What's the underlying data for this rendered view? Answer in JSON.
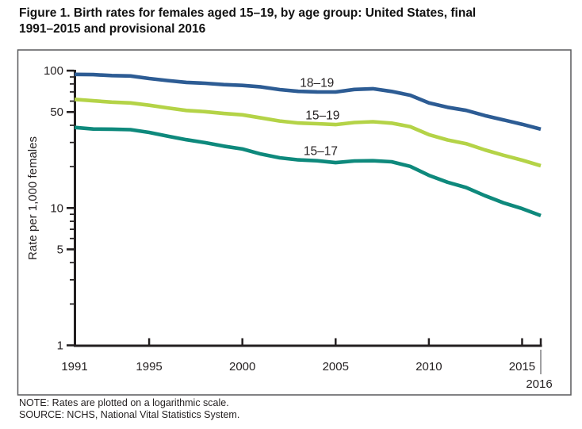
{
  "figure": {
    "title_lines": [
      "Figure 1. Birth rates for females aged 15–19, by age group: United States, final",
      "1991–2015 and provisional 2016"
    ],
    "notes": [
      "NOTE: Rates are plotted on a logarithmic scale.",
      "SOURCE: NCHS, National Vital Statistics System."
    ]
  },
  "chart_data": {
    "type": "line",
    "title": "Birth rates for females aged 15–19, by age group: United States, final 1991–2015 and provisional 2016",
    "xlabel": "",
    "ylabel": "Rate per 1,000 females",
    "y_scale": "log",
    "ylim": [
      1,
      100
    ],
    "xlim": [
      1991,
      2016
    ],
    "grid": false,
    "legend_position": "inline-labels",
    "colors": {
      "series_18_19": "#2d5c94",
      "series_15_19": "#b4d347",
      "series_15_17": "#0e897c",
      "axis": "#231f20",
      "box_border": "#58595b",
      "divider": "#77787b"
    },
    "x": [
      1991,
      1992,
      1993,
      1994,
      1995,
      1996,
      1997,
      1998,
      1999,
      2000,
      2001,
      2002,
      2003,
      2004,
      2005,
      2006,
      2007,
      2008,
      2009,
      2010,
      2011,
      2012,
      2013,
      2014,
      2015,
      2016
    ],
    "series": [
      {
        "name": "18–19",
        "color_key": "series_18_19",
        "values": [
          94.0,
          93.6,
          92.1,
          91.5,
          87.7,
          84.7,
          82.1,
          80.9,
          79.1,
          78.1,
          76.1,
          72.8,
          70.7,
          70.0,
          69.9,
          73.0,
          73.9,
          70.6,
          66.2,
          58.2,
          54.1,
          51.4,
          47.1,
          43.8,
          40.7,
          37.5
        ]
      },
      {
        "name": "15–19",
        "color_key": "series_15_19",
        "values": [
          61.8,
          60.3,
          59.0,
          58.2,
          56.0,
          53.5,
          51.3,
          50.3,
          48.8,
          47.7,
          45.3,
          43.0,
          41.6,
          41.1,
          40.5,
          41.9,
          42.5,
          41.5,
          39.1,
          34.2,
          31.3,
          29.4,
          26.5,
          24.2,
          22.3,
          20.3
        ]
      },
      {
        "name": "15–17",
        "color_key": "series_15_17",
        "values": [
          38.6,
          37.6,
          37.5,
          37.2,
          35.5,
          33.3,
          31.4,
          29.9,
          28.2,
          26.9,
          24.7,
          23.2,
          22.4,
          22.1,
          21.4,
          22.0,
          22.1,
          21.7,
          20.1,
          17.3,
          15.4,
          14.1,
          12.3,
          10.9,
          9.9,
          8.8
        ]
      }
    ],
    "annotations": [
      {
        "text": "18–19",
        "year": 2004.0,
        "value": 82.0
      },
      {
        "text": "15–19",
        "year": 2004.3,
        "value": 47.5
      },
      {
        "text": "15–17",
        "year": 2004.2,
        "value": 26.2
      }
    ],
    "y_axis": {
      "title": "Rate per 1,000 females",
      "major_ticks": [
        100,
        50,
        10,
        5,
        1
      ],
      "minor_ticks": [
        90,
        80,
        70,
        60,
        40,
        30,
        20,
        9,
        8,
        7,
        6,
        4,
        3,
        2
      ]
    },
    "x_axis": {
      "tick_years": [
        1995,
        2000,
        2005,
        2010,
        2015,
        2016
      ],
      "label_years": [
        1991,
        1995,
        2000,
        2005,
        2010,
        2015
      ],
      "provisional_year_label": "2016"
    }
  }
}
